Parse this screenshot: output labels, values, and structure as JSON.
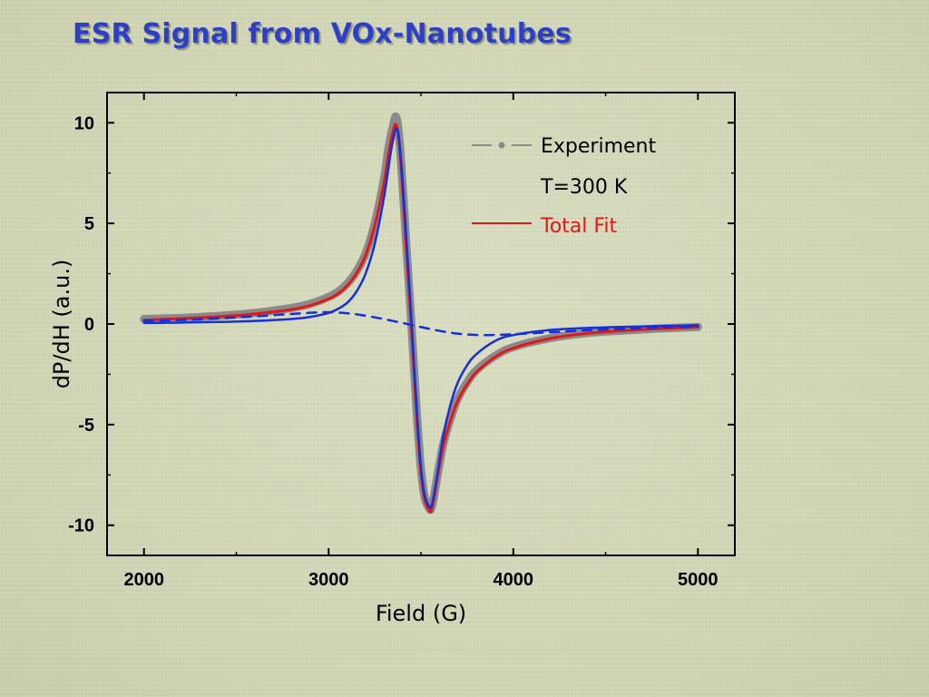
{
  "slide": {
    "title": "ESR Signal from VOx-Nanotubes"
  },
  "chart_data": {
    "type": "line",
    "xlabel": "Field (G)",
    "ylabel": "dP/dH (a.u.)",
    "xlim": [
      1800,
      5200
    ],
    "ylim": [
      -11.5,
      11.5
    ],
    "x_ticks": [
      2000,
      3000,
      4000,
      5000
    ],
    "y_ticks": [
      -10,
      -5,
      0,
      5,
      10
    ],
    "grid": false,
    "legend_position": "top-right",
    "legend": {
      "experiment": "Experiment",
      "temperature": "T=300 K",
      "fit": "Total Fit"
    },
    "colors": {
      "experiment": "#8a8a8a",
      "fit": "#e01818",
      "component_narrow": "#1530d8",
      "component_broad": "#1530d8"
    },
    "series": [
      {
        "name": "Experiment",
        "style": "gray-thick",
        "x": [
          2000,
          2200,
          2400,
          2600,
          2800,
          2900,
          3000,
          3050,
          3100,
          3150,
          3200,
          3250,
          3300,
          3325,
          3350,
          3365,
          3380,
          3400,
          3420,
          3440,
          3460,
          3480,
          3500,
          3520,
          3540,
          3555,
          3570,
          3590,
          3620,
          3660,
          3700,
          3750,
          3800,
          3900,
          4000,
          4200,
          4400,
          4600,
          4800,
          5000
        ],
        "y": [
          0.25,
          0.3,
          0.4,
          0.55,
          0.8,
          1.0,
          1.35,
          1.6,
          2.0,
          2.6,
          3.5,
          5.0,
          7.2,
          8.8,
          9.9,
          10.3,
          9.5,
          7.0,
          4.0,
          1.2,
          -1.8,
          -4.8,
          -7.2,
          -8.6,
          -9.1,
          -9.2,
          -8.6,
          -7.5,
          -6.0,
          -4.7,
          -3.7,
          -2.9,
          -2.3,
          -1.6,
          -1.15,
          -0.7,
          -0.45,
          -0.32,
          -0.22,
          -0.15
        ]
      },
      {
        "name": "Total Fit",
        "style": "red-solid",
        "x": [
          2000,
          2200,
          2400,
          2600,
          2800,
          2900,
          3000,
          3050,
          3100,
          3150,
          3200,
          3250,
          3300,
          3325,
          3350,
          3365,
          3380,
          3400,
          3420,
          3440,
          3460,
          3480,
          3500,
          3520,
          3540,
          3555,
          3570,
          3590,
          3620,
          3660,
          3700,
          3750,
          3800,
          3900,
          4000,
          4200,
          4400,
          4600,
          4800,
          5000
        ],
        "y": [
          0.2,
          0.27,
          0.36,
          0.5,
          0.72,
          0.92,
          1.25,
          1.5,
          1.9,
          2.5,
          3.4,
          4.9,
          7.0,
          8.5,
          9.6,
          9.9,
          9.2,
          6.8,
          3.8,
          1.0,
          -2.0,
          -5.0,
          -7.4,
          -8.7,
          -9.2,
          -9.3,
          -8.7,
          -7.6,
          -6.1,
          -4.8,
          -3.8,
          -3.0,
          -2.4,
          -1.65,
          -1.2,
          -0.72,
          -0.47,
          -0.33,
          -0.23,
          -0.16
        ]
      },
      {
        "name": "",
        "style": "blue-solid",
        "x": [
          2000,
          2200,
          2400,
          2600,
          2800,
          2900,
          3000,
          3050,
          3100,
          3150,
          3200,
          3250,
          3300,
          3325,
          3350,
          3365,
          3380,
          3400,
          3420,
          3440,
          3460,
          3480,
          3500,
          3520,
          3540,
          3555,
          3570,
          3590,
          3620,
          3660,
          3700,
          3750,
          3800,
          3900,
          4000,
          4200,
          4400,
          4600,
          4800,
          5000
        ],
        "y": [
          0.05,
          0.07,
          0.1,
          0.15,
          0.25,
          0.35,
          0.55,
          0.75,
          1.05,
          1.6,
          2.5,
          4.0,
          6.3,
          7.9,
          9.2,
          9.7,
          9.3,
          7.2,
          4.4,
          1.5,
          -1.6,
          -4.6,
          -7.1,
          -8.5,
          -9.0,
          -9.1,
          -8.5,
          -7.4,
          -5.6,
          -4.0,
          -2.9,
          -2.05,
          -1.5,
          -0.85,
          -0.55,
          -0.3,
          -0.2,
          -0.14,
          -0.1,
          -0.07
        ]
      },
      {
        "name": "",
        "style": "blue-dashed",
        "x": [
          2000,
          2200,
          2400,
          2600,
          2800,
          2950,
          3050,
          3150,
          3250,
          3350,
          3450,
          3550,
          3650,
          3750,
          3850,
          3950,
          4100,
          4300,
          4500,
          4700,
          5000
        ],
        "y": [
          0.15,
          0.2,
          0.28,
          0.38,
          0.5,
          0.58,
          0.57,
          0.48,
          0.33,
          0.15,
          -0.05,
          -0.25,
          -0.42,
          -0.52,
          -0.55,
          -0.53,
          -0.46,
          -0.36,
          -0.27,
          -0.2,
          -0.12
        ]
      }
    ]
  }
}
